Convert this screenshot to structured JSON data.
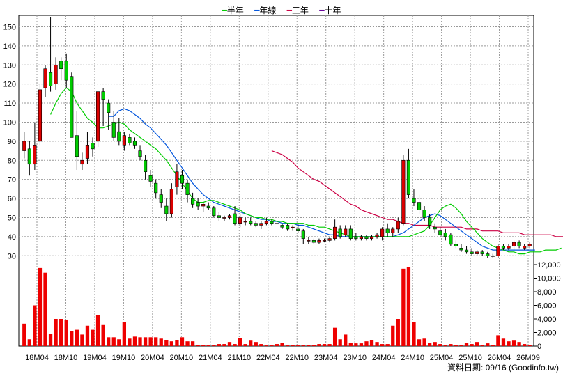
{
  "legend": [
    {
      "label": "半年",
      "color": "#00cc00"
    },
    {
      "label": "年線",
      "color": "#0055dd"
    },
    {
      "label": "三年",
      "color": "#cc0044"
    },
    {
      "label": "十年",
      "color": "#660099"
    }
  ],
  "credit": "資料日期: 09/16  (Goodinfo.tw)",
  "chart_data": {
    "type": "candlestick",
    "x_tick_labels": [
      "18M04",
      "18M10",
      "19M04",
      "19M10",
      "20M04",
      "20M10",
      "21M04",
      "21M10",
      "22M04",
      "22M10",
      "23M04",
      "23M10",
      "24M04",
      "24M10",
      "25M04",
      "25M10",
      "26M04",
      "26M09"
    ],
    "price_axis": {
      "ticks": [
        30,
        40,
        50,
        60,
        70,
        80,
        90,
        100,
        110,
        120,
        130,
        140,
        150
      ],
      "range": [
        25,
        156
      ],
      "grid": true
    },
    "volume_axis": {
      "tick_labels": [
        "0",
        "2,000",
        "4,000",
        "6,000",
        "8,000",
        "10,000",
        "12,000"
      ],
      "range": [
        0,
        12000
      ]
    },
    "colors": {
      "up": "#dd0000",
      "down": "#00cc00",
      "volume": "#ee0000"
    },
    "candles": [
      [
        85,
        95,
        81,
        90
      ],
      [
        86,
        90,
        72,
        78
      ],
      [
        78,
        100,
        75,
        88
      ],
      [
        90,
        120,
        88,
        117
      ],
      [
        118,
        130,
        113,
        128
      ],
      [
        126,
        155,
        116,
        119
      ],
      [
        120,
        134,
        117,
        130
      ],
      [
        132,
        134,
        122,
        128
      ],
      [
        132,
        136,
        118,
        122
      ],
      [
        124,
        126,
        92,
        92
      ],
      [
        93,
        106,
        75,
        82
      ],
      [
        78,
        84,
        75,
        80
      ],
      [
        81,
        95,
        78,
        88
      ],
      [
        89,
        92,
        82,
        86
      ],
      [
        90,
        116,
        87,
        116
      ],
      [
        116,
        118,
        98,
        112
      ],
      [
        110,
        112,
        96,
        105
      ],
      [
        100,
        106,
        90,
        92
      ],
      [
        95,
        102,
        88,
        90
      ],
      [
        88,
        95,
        85,
        93
      ],
      [
        92,
        94,
        88,
        89
      ],
      [
        90,
        92,
        86,
        88
      ],
      [
        85,
        88,
        80,
        82
      ],
      [
        80,
        83,
        70,
        74
      ],
      [
        72,
        75,
        66,
        69
      ],
      [
        68,
        70,
        60,
        63
      ],
      [
        62,
        65,
        55,
        58
      ],
      [
        56,
        60,
        48,
        52
      ],
      [
        52,
        68,
        50,
        65
      ],
      [
        66,
        78,
        62,
        74
      ],
      [
        72,
        75,
        65,
        68
      ],
      [
        68,
        70,
        58,
        62
      ],
      [
        60,
        63,
        55,
        57
      ],
      [
        58,
        60,
        54,
        56
      ],
      [
        56,
        58,
        53,
        57
      ],
      [
        56,
        58,
        54,
        55
      ],
      [
        55,
        56,
        50,
        51
      ],
      [
        51,
        53,
        48,
        50
      ],
      [
        50,
        51,
        48,
        50
      ],
      [
        50,
        52,
        49,
        51
      ],
      [
        52,
        56,
        46,
        47
      ],
      [
        47,
        52,
        45,
        50
      ],
      [
        48,
        50,
        46,
        48
      ],
      [
        48,
        50,
        46,
        47
      ],
      [
        47,
        48,
        45,
        46
      ],
      [
        46,
        48,
        44,
        47
      ],
      [
        47,
        50,
        46,
        48
      ],
      [
        48,
        49,
        46,
        47
      ],
      [
        47,
        48,
        45,
        47
      ],
      [
        46,
        47,
        44,
        45
      ],
      [
        46,
        47,
        43,
        44
      ],
      [
        45,
        46,
        43,
        45
      ],
      [
        44,
        47,
        42,
        43
      ],
      [
        43,
        44,
        36,
        39
      ],
      [
        38,
        40,
        36,
        38
      ],
      [
        38,
        39,
        36,
        37
      ],
      [
        37,
        39,
        36,
        38
      ],
      [
        38,
        39,
        37,
        38
      ],
      [
        38,
        40,
        37,
        39
      ],
      [
        39,
        49,
        38,
        45
      ],
      [
        44,
        46,
        39,
        40
      ],
      [
        41,
        46,
        40,
        44
      ],
      [
        44,
        46,
        38,
        39
      ],
      [
        40,
        42,
        38,
        39
      ],
      [
        39,
        41,
        38,
        40
      ],
      [
        40,
        41,
        38,
        39
      ],
      [
        39,
        41,
        38,
        40
      ],
      [
        40,
        42,
        39,
        41
      ],
      [
        40,
        45,
        38,
        44
      ],
      [
        44,
        47,
        40,
        42
      ],
      [
        42,
        45,
        40,
        44
      ],
      [
        44,
        50,
        42,
        48
      ],
      [
        47,
        83,
        46,
        80
      ],
      [
        80,
        86,
        60,
        62
      ],
      [
        60,
        65,
        56,
        58
      ],
      [
        58,
        62,
        52,
        54
      ],
      [
        54,
        56,
        48,
        50
      ],
      [
        50,
        52,
        44,
        46
      ],
      [
        45,
        47,
        42,
        44
      ],
      [
        43,
        45,
        40,
        41
      ],
      [
        42,
        44,
        38,
        40
      ],
      [
        41,
        42,
        35,
        36
      ],
      [
        36,
        38,
        34,
        35
      ],
      [
        34,
        36,
        32,
        33
      ],
      [
        33,
        35,
        31,
        32
      ],
      [
        32,
        34,
        30,
        31
      ],
      [
        31,
        33,
        30,
        32
      ],
      [
        32,
        33,
        30,
        31
      ],
      [
        31,
        32,
        29,
        30
      ],
      [
        30,
        31,
        29,
        30
      ],
      [
        30,
        36,
        29,
        35
      ],
      [
        35,
        36,
        33,
        34
      ],
      [
        34,
        36,
        33,
        35
      ],
      [
        35,
        38,
        33,
        37
      ],
      [
        37,
        38,
        34,
        35
      ],
      [
        34,
        36,
        33,
        35
      ],
      [
        35,
        37,
        34,
        36
      ]
    ],
    "volume": [
      3300,
      1000,
      6000,
      11500,
      10800,
      1800,
      4000,
      4000,
      3900,
      2200,
      2400,
      1700,
      3000,
      2400,
      4600,
      3100,
      1300,
      1300,
      1000,
      3500,
      1100,
      1400,
      1300,
      1300,
      1300,
      1300,
      1100,
      900,
      700,
      900,
      1300,
      700,
      700,
      200,
      200,
      100,
      200,
      300,
      300,
      600,
      300,
      1200,
      300,
      800,
      600,
      300,
      100,
      100,
      300,
      500,
      100,
      200,
      100,
      200,
      200,
      200,
      300,
      300,
      300,
      2700,
      1000,
      1700,
      500,
      400,
      400,
      700,
      900,
      600,
      300,
      300,
      3000,
      4000,
      11400,
      11600,
      3500,
      1000,
      1100,
      500,
      600,
      300,
      200,
      300,
      200,
      200,
      500,
      300,
      600,
      200,
      400,
      200,
      1600,
      1100,
      700,
      800,
      600,
      300,
      200
    ],
    "ma_half_year": {
      "name": "半年",
      "start": 5,
      "values": [
        104,
        110,
        115,
        118,
        116,
        110,
        106,
        102,
        100,
        97,
        97,
        98,
        99,
        100,
        99,
        96,
        94,
        92,
        90,
        88,
        86,
        83,
        80,
        76,
        72,
        68,
        64,
        60,
        58,
        58,
        59,
        59,
        58,
        57,
        56,
        55,
        54,
        52,
        51,
        50,
        50,
        49,
        49,
        48,
        48,
        47,
        47,
        47,
        47,
        46,
        46,
        45,
        45,
        44,
        43,
        42,
        41,
        40,
        40,
        40,
        40,
        40,
        40,
        40,
        40,
        40,
        40,
        40,
        40,
        41,
        42,
        43,
        46,
        50,
        54,
        56,
        57,
        55,
        52,
        48,
        45,
        42,
        39,
        37,
        35,
        34,
        33,
        32,
        32,
        31,
        31,
        32,
        32,
        32,
        33,
        33,
        33,
        34
      ]
    },
    "ma_year": {
      "name": "年線",
      "start": 16,
      "values": [
        103,
        103,
        106,
        107,
        106,
        104,
        102,
        99,
        97,
        94,
        91,
        88,
        84,
        80,
        76,
        72,
        68,
        65,
        62,
        60,
        58,
        57,
        56,
        55,
        54,
        53,
        52,
        51,
        50,
        49,
        49,
        48,
        48,
        47,
        47,
        47,
        46,
        46,
        45,
        44,
        43,
        42,
        41,
        41,
        40,
        40,
        40,
        40,
        40,
        40,
        40,
        40,
        40,
        40,
        40,
        41,
        42,
        44,
        46,
        48,
        50,
        51,
        52,
        51,
        49,
        47,
        45,
        43,
        41,
        39,
        37,
        35,
        34,
        33,
        33,
        33,
        33,
        33,
        33,
        33,
        33,
        33
      ]
    },
    "ma_three_year": {
      "name": "三年",
      "start": 47,
      "values": [
        85,
        84,
        83,
        81,
        79,
        76,
        74,
        72,
        70,
        69,
        67,
        65,
        63,
        61,
        59,
        57,
        56,
        54,
        53,
        52,
        51,
        50,
        49,
        49,
        48,
        47,
        47,
        46,
        46,
        46,
        46,
        45,
        45,
        45,
        45,
        45,
        45,
        44,
        44,
        44,
        43,
        43,
        43,
        43,
        42,
        42,
        42,
        42,
        41,
        41,
        41,
        41,
        41,
        41,
        40,
        40,
        40,
        40,
        40,
        40,
        40
      ]
    },
    "ma_ten_year": {
      "name": "十年",
      "values": []
    }
  }
}
